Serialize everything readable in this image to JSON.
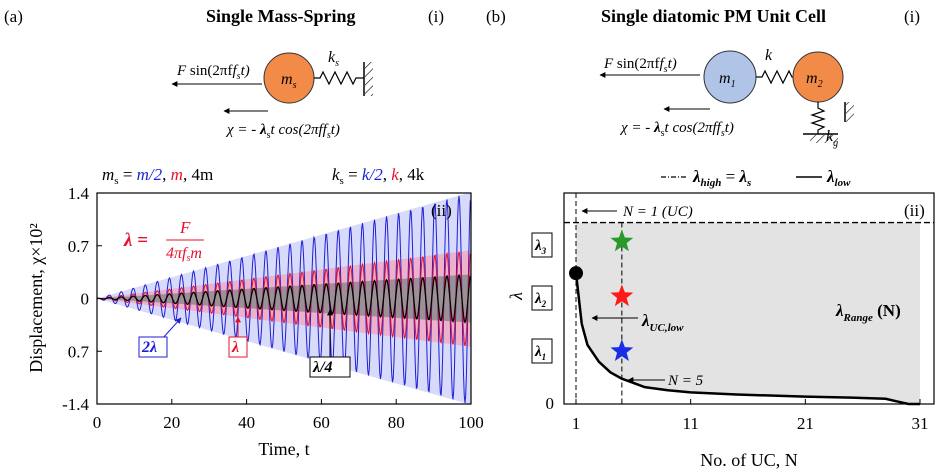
{
  "panel_a": {
    "label": "(a)",
    "title": "Single Mass-Spring",
    "sub_i": "(i)",
    "sub_ii": "(ii)",
    "diagram": {
      "force_F": "F",
      "force_rest": " sin(2πf",
      "force_sub": "s",
      "force_end": "t)",
      "mass_m": "m",
      "mass_sub": "s",
      "spring_k": "k",
      "spring_sub": "s",
      "chi_text": "χ = - ",
      "chi_lambda": "λ",
      "chi_lsub": "s",
      "chi_rest": "t cos(2πf",
      "chi_fsub": "s",
      "chi_end": "t)"
    },
    "mass_legend": {
      "m_s": "m",
      "m_s_sub": "s",
      "eq": " = ",
      "v1": "m/2",
      "sep1": ", ",
      "v2": "m",
      "sep2": ", ",
      "v3": "4m"
    },
    "k_legend": {
      "k_s": "k",
      "k_s_sub": "s",
      "eq": " = ",
      "v1": "k/2",
      "sep1": ", ",
      "v2": "k",
      "sep2": ", ",
      "v3": "4k"
    },
    "lambda_eq": {
      "lhs": "λ = ",
      "num": "F",
      "den_a": "4πf",
      "den_sub": "s",
      "den_b": "m"
    },
    "annotations": {
      "a1": "2λ",
      "a2": "λ",
      "a3": "λ/4"
    },
    "colors": {
      "blue": "#1f1fd6",
      "red": "#e8102a",
      "black": "#000000"
    }
  },
  "panel_b": {
    "label": "(b)",
    "title": "Single diatomic PM Unit Cell",
    "sub_i": "(i)",
    "sub_ii": "(ii)",
    "diagram": {
      "force_F": "F",
      "force_rest": " sin(2πf",
      "force_sub": "s",
      "force_end": "t)",
      "m1": "m",
      "m1_sub": "1",
      "m2": "m",
      "m2_sub": "2",
      "k": "k",
      "kg": "k",
      "kg_sub": "g",
      "chi_text": "χ = - ",
      "chi_lambda": "λ",
      "chi_lsub": "s",
      "chi_rest": "t cos(2πf",
      "chi_fsub": "s",
      "chi_end": "t)"
    },
    "legend": {
      "high": "λ",
      "high_sub": "high",
      "eq": " = ",
      "s": "λ",
      "s_sub": "s",
      "low": "λ",
      "low_sub": "low"
    },
    "labels": {
      "n1": "N = 1 (UC)",
      "n5": "N = 5",
      "uc_low": "λ",
      "uc_low_sub": "UC,low",
      "range": "λ",
      "range_sub": "Range",
      "range_n": " (N)",
      "l1": "λ",
      "l1_sub": "1",
      "l2": "λ",
      "l2_sub": "2",
      "l3": "λ",
      "l3_sub": "3"
    }
  },
  "chart_data": [
    {
      "type": "line",
      "xlabel": "Time, t",
      "ylabel": "Displacement, χ×10²",
      "xlim": [
        0,
        100
      ],
      "ylim": [
        -1.4,
        1.4
      ],
      "xticks": [
        "0",
        "20",
        "40",
        "60",
        "80",
        "100"
      ],
      "yticks": [
        "1.4",
        "0.7",
        "0",
        "0.7",
        "-1.4"
      ],
      "series": [
        {
          "name": "2λ",
          "color": "#1f1fd6",
          "envelope_slope": 0.0141
        },
        {
          "name": "λ",
          "color": "#e8102a",
          "envelope_slope": 0.0064
        },
        {
          "name": "λ/4",
          "color": "#000000",
          "envelope_slope": 0.0032
        }
      ],
      "cycles": 31
    },
    {
      "type": "line",
      "xlabel": "No. of UC, N",
      "ylabel": "λ",
      "xlim": [
        1,
        31
      ],
      "ylim": [
        0,
        1
      ],
      "xticks": [
        "1",
        "11",
        "21",
        "31"
      ],
      "yticks": [
        "0",
        "1"
      ],
      "x": [
        1,
        1.5,
        2,
        3,
        4,
        5,
        7,
        9,
        11,
        15,
        21,
        25,
        28,
        29,
        30,
        31
      ],
      "y": [
        0.62,
        0.38,
        0.28,
        0.2,
        0.15,
        0.12,
        0.08,
        0.065,
        0.055,
        0.045,
        0.035,
        0.03,
        0.025,
        0.012,
        0.0,
        0.0
      ],
      "lambda_high": 0.86,
      "markers": [
        {
          "name": "λ1",
          "x": 5,
          "y": 0.25,
          "color": "#1a2ee8"
        },
        {
          "name": "λ2",
          "x": 5,
          "y": 0.51,
          "color": "#ff1a1a"
        },
        {
          "name": "λ3",
          "x": 5,
          "y": 0.77,
          "color": "#2a9a2a"
        }
      ]
    }
  ]
}
